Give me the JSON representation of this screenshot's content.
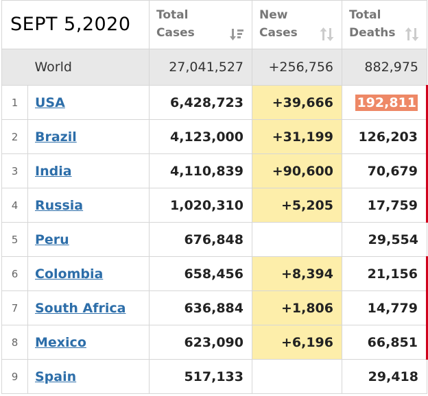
{
  "date": "SEPT 5,2020",
  "headers": {
    "total_cases_1": "Total",
    "total_cases_2": "Cases",
    "new_cases_1": "New",
    "new_cases_2": "Cases",
    "total_deaths_1": "Total",
    "total_deaths_2": "Deaths"
  },
  "world": {
    "label": "World",
    "total_cases": "27,041,527",
    "new_cases": "+256,756",
    "total_deaths": "882,975"
  },
  "rows": [
    {
      "rank": "1",
      "country": "USA",
      "total_cases": "6,428,723",
      "new_cases": "+39,666",
      "total_deaths": "192,811"
    },
    {
      "rank": "2",
      "country": "Brazil",
      "total_cases": "4,123,000",
      "new_cases": "+31,199",
      "total_deaths": "126,203"
    },
    {
      "rank": "3",
      "country": "India",
      "total_cases": "4,110,839",
      "new_cases": "+90,600",
      "total_deaths": "70,679"
    },
    {
      "rank": "4",
      "country": "Russia",
      "total_cases": "1,020,310",
      "new_cases": "+5,205",
      "total_deaths": "17,759"
    },
    {
      "rank": "5",
      "country": "Peru",
      "total_cases": "676,848",
      "new_cases": "",
      "total_deaths": "29,554"
    },
    {
      "rank": "6",
      "country": "Colombia",
      "total_cases": "658,456",
      "new_cases": "+8,394",
      "total_deaths": "21,156"
    },
    {
      "rank": "7",
      "country": "South Africa",
      "total_cases": "636,884",
      "new_cases": "+1,806",
      "total_deaths": "14,779"
    },
    {
      "rank": "8",
      "country": "Mexico",
      "total_cases": "623,090",
      "new_cases": "+6,196",
      "total_deaths": "66,851"
    },
    {
      "rank": "9",
      "country": "Spain",
      "total_cases": "517,133",
      "new_cases": "",
      "total_deaths": "29,418"
    }
  ],
  "colors": {
    "new_cases_highlight": "#fdeeaa",
    "death_highlight": "#ee8866",
    "red_bar": "#d0021b",
    "link": "#2d6ea9"
  },
  "icons": {
    "sort_active": "sort-desc-icon",
    "sort_inactive": "sort-icon"
  }
}
